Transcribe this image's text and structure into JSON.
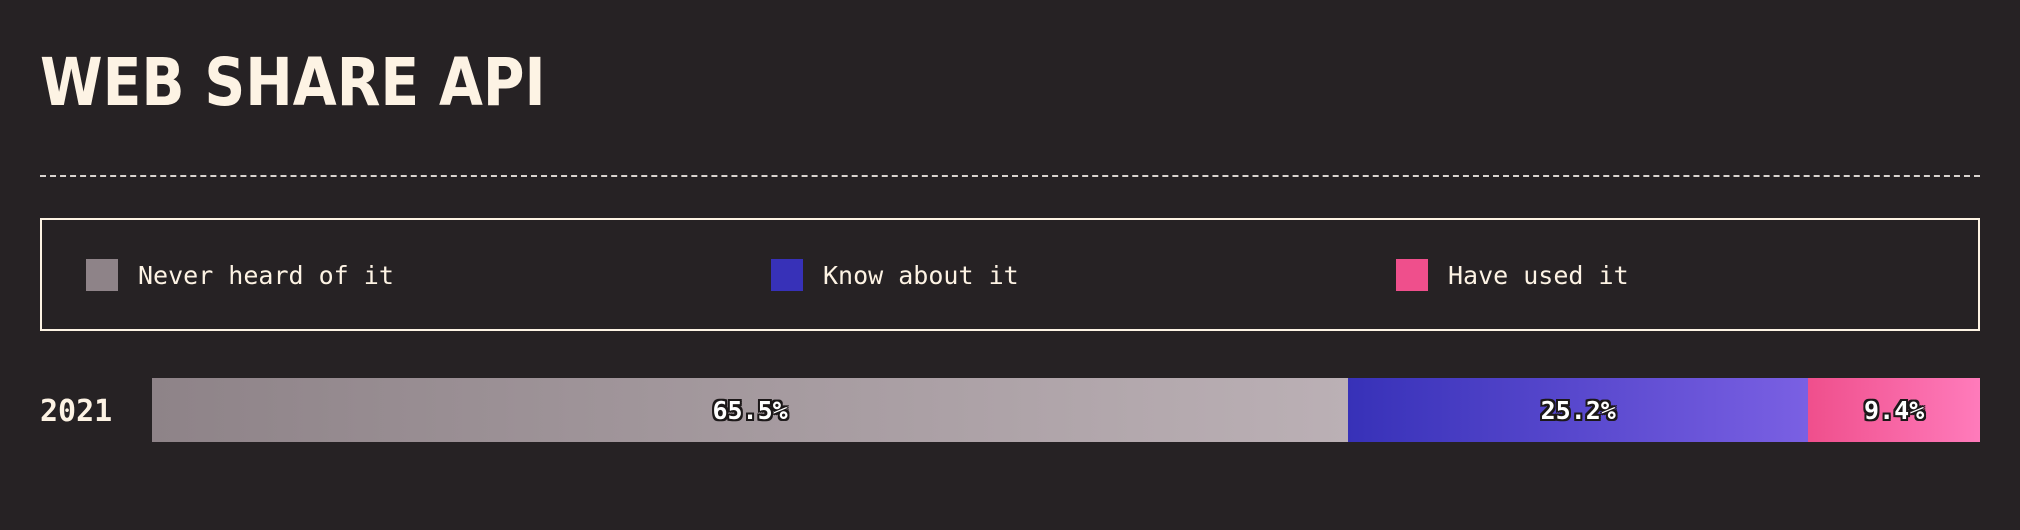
{
  "chart_data": {
    "type": "bar",
    "orientation": "horizontal",
    "stacked": true,
    "normalized_to": 100,
    "title": "WEB SHARE API",
    "categories": [
      "2021"
    ],
    "series": [
      {
        "name": "Never heard of it",
        "values": [
          65.5
        ],
        "label": "65.5%",
        "color_start": "#8e8388",
        "color_end": "#bbb0b5"
      },
      {
        "name": "Know about it",
        "values": [
          25.2
        ],
        "label": "25.2%",
        "color_start": "#3731b8",
        "color_end": "#7a60e3"
      },
      {
        "name": "Have used it",
        "values": [
          9.4
        ],
        "label": "9.4%",
        "color_start": "#ef4f8c",
        "color_end": "#ff7bbb"
      }
    ],
    "legend_position": "top",
    "grid": false
  },
  "colors": {
    "background": "#262224",
    "text": "#fdf3e4"
  }
}
